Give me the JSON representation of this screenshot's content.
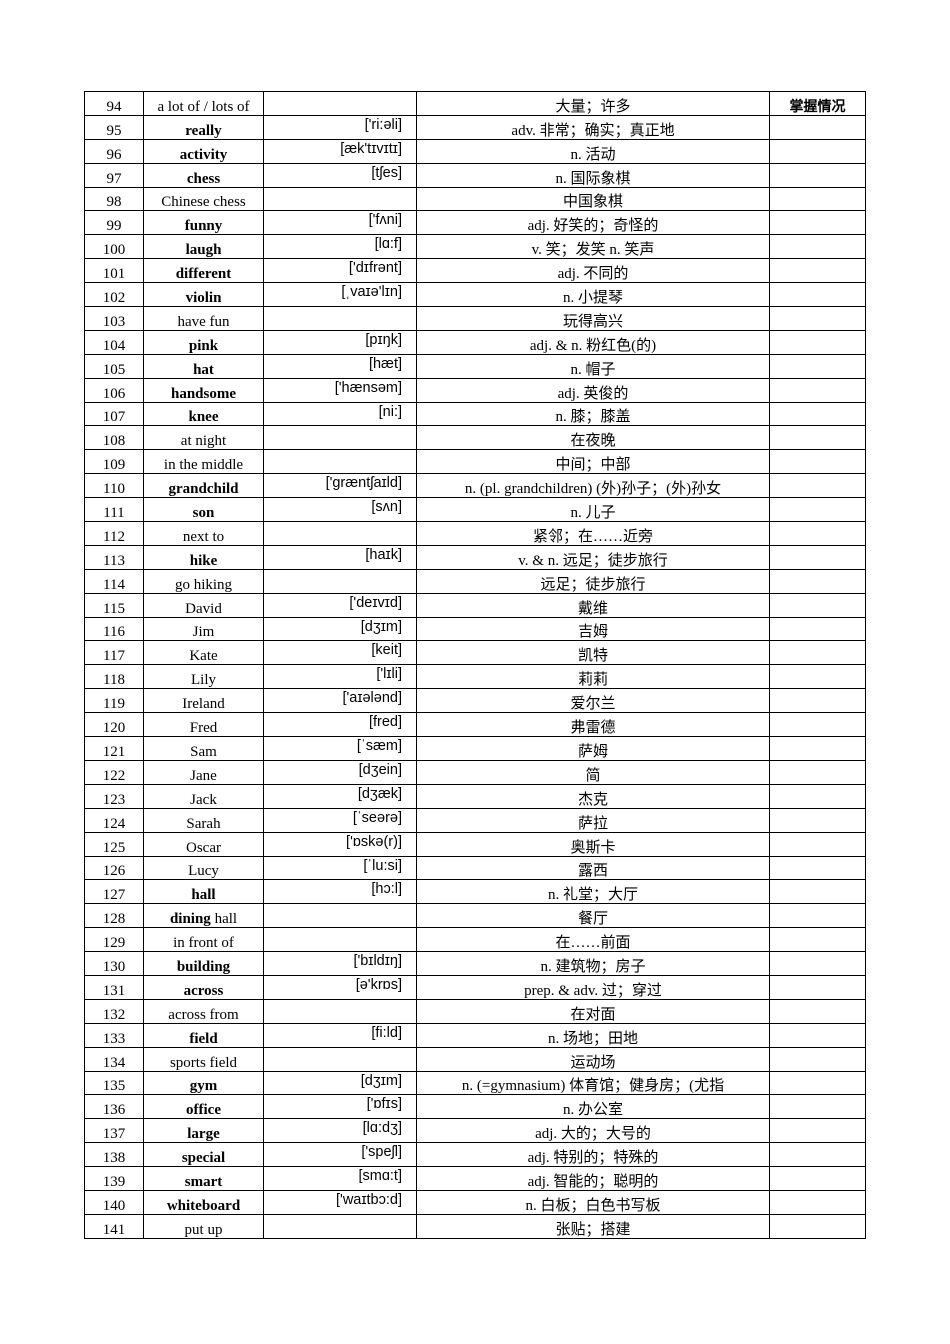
{
  "header_status": "掌握情况",
  "rows": [
    {
      "num": "94",
      "word": [
        {
          "t": "a lot of / lots of",
          "b": false
        }
      ],
      "phon": "",
      "mean": "大量；许多"
    },
    {
      "num": "95",
      "word": [
        {
          "t": "really",
          "b": true
        }
      ],
      "phon": "['ri:əli]",
      "mean": "adv. 非常；确实；真正地"
    },
    {
      "num": "96",
      "word": [
        {
          "t": "activity",
          "b": true
        }
      ],
      "phon": "[æk'tɪvɪtɪ]",
      "mean": "n. 活动"
    },
    {
      "num": "97",
      "word": [
        {
          "t": "chess",
          "b": true
        }
      ],
      "phon": "[tʃes]",
      "mean": "n. 国际象棋"
    },
    {
      "num": "98",
      "word": [
        {
          "t": "Chinese chess",
          "b": false
        }
      ],
      "phon": "",
      "mean": "中国象棋"
    },
    {
      "num": "99",
      "word": [
        {
          "t": "funny",
          "b": true
        }
      ],
      "phon": "['fʌni]",
      "mean": "adj. 好笑的；奇怪的"
    },
    {
      "num": "100",
      "word": [
        {
          "t": "laugh",
          "b": true
        }
      ],
      "phon": "[lɑ:f]",
      "mean": "v. 笑；发笑 n. 笑声"
    },
    {
      "num": "101",
      "word": [
        {
          "t": "different",
          "b": true
        }
      ],
      "phon": "['dɪfrənt]",
      "mean": "adj. 不同的"
    },
    {
      "num": "102",
      "word": [
        {
          "t": "violin",
          "b": true
        }
      ],
      "phon": "[ˌvaɪə'lɪn]",
      "mean": "n. 小提琴"
    },
    {
      "num": "103",
      "word": [
        {
          "t": "have fun",
          "b": false
        }
      ],
      "phon": "",
      "mean": "玩得高兴"
    },
    {
      "num": "104",
      "word": [
        {
          "t": "pink",
          "b": true
        }
      ],
      "phon": "[pɪŋk]",
      "mean": "adj. & n. 粉红色(的)"
    },
    {
      "num": "105",
      "word": [
        {
          "t": "hat",
          "b": true
        }
      ],
      "phon": "[hæt]",
      "mean": "n. 帽子"
    },
    {
      "num": "106",
      "word": [
        {
          "t": "handsome",
          "b": true
        }
      ],
      "phon": "['hænsəm]",
      "mean": "adj. 英俊的"
    },
    {
      "num": "107",
      "word": [
        {
          "t": "knee",
          "b": true
        }
      ],
      "phon": "[ni:]",
      "mean": "n. 膝；膝盖"
    },
    {
      "num": "108",
      "word": [
        {
          "t": "at night",
          "b": false
        }
      ],
      "phon": "",
      "mean": "在夜晚"
    },
    {
      "num": "109",
      "word": [
        {
          "t": "in the middle",
          "b": false
        }
      ],
      "phon": "",
      "mean": "中间；中部"
    },
    {
      "num": "110",
      "word": [
        {
          "t": "grandchild",
          "b": true
        }
      ],
      "phon": "['græntʃaɪld]",
      "mean": "n. (pl. grandchildren) (外)孙子；(外)孙女"
    },
    {
      "num": "111",
      "word": [
        {
          "t": "son",
          "b": true
        }
      ],
      "phon": "[sʌn]",
      "mean": "n. 儿子"
    },
    {
      "num": "112",
      "word": [
        {
          "t": "next to",
          "b": false
        }
      ],
      "phon": "",
      "mean": "紧邻；在……近旁"
    },
    {
      "num": "113",
      "word": [
        {
          "t": "hike",
          "b": true
        }
      ],
      "phon": "[haɪk]",
      "mean": "v. & n. 远足；徒步旅行"
    },
    {
      "num": "114",
      "word": [
        {
          "t": "go hiking",
          "b": false
        }
      ],
      "phon": "",
      "mean": "远足；徒步旅行"
    },
    {
      "num": "115",
      "word": [
        {
          "t": "David",
          "b": false
        }
      ],
      "phon": "['deɪvɪd]",
      "mean": "戴维"
    },
    {
      "num": "116",
      "word": [
        {
          "t": "Jim",
          "b": false
        }
      ],
      "phon": "[dʒɪm]",
      "mean": "吉姆"
    },
    {
      "num": "117",
      "word": [
        {
          "t": "Kate",
          "b": false
        }
      ],
      "phon": "[keit]",
      "mean": "凯特"
    },
    {
      "num": "118",
      "word": [
        {
          "t": "Lily",
          "b": false
        }
      ],
      "phon": "['lɪli]",
      "mean": "莉莉"
    },
    {
      "num": "119",
      "word": [
        {
          "t": "Ireland",
          "b": false
        }
      ],
      "phon": "['aɪələnd]",
      "mean": "爱尔兰"
    },
    {
      "num": "120",
      "word": [
        {
          "t": "Fred",
          "b": false
        }
      ],
      "phon": "[fred]",
      "mean": "弗雷德"
    },
    {
      "num": "121",
      "word": [
        {
          "t": "Sam",
          "b": false
        }
      ],
      "phon": "[ˈsæm]",
      "mean": "萨姆"
    },
    {
      "num": "122",
      "word": [
        {
          "t": "Jane",
          "b": false
        }
      ],
      "phon": "[dʒein]",
      "mean": "简"
    },
    {
      "num": "123",
      "word": [
        {
          "t": "Jack",
          "b": false
        }
      ],
      "phon": "[dʒæk]",
      "mean": "杰克"
    },
    {
      "num": "124",
      "word": [
        {
          "t": "Sarah",
          "b": false
        }
      ],
      "phon": "[ˈseərə]",
      "mean": "萨拉"
    },
    {
      "num": "125",
      "word": [
        {
          "t": "Oscar",
          "b": false
        }
      ],
      "phon": "['ɒskə(r)]",
      "mean": "奥斯卡"
    },
    {
      "num": "126",
      "word": [
        {
          "t": "Lucy",
          "b": false
        }
      ],
      "phon": "[ˈlu:si]",
      "mean": "露西"
    },
    {
      "num": "127",
      "word": [
        {
          "t": "hall",
          "b": true
        }
      ],
      "phon": "[hɔ:l]",
      "mean": "n. 礼堂；大厅"
    },
    {
      "num": "128",
      "word": [
        {
          "t": "dining",
          "b": true
        },
        {
          "t": " hall",
          "b": false
        }
      ],
      "phon": "",
      "mean": "餐厅"
    },
    {
      "num": "129",
      "word": [
        {
          "t": "in front of",
          "b": false
        }
      ],
      "phon": "",
      "mean": "在……前面"
    },
    {
      "num": "130",
      "word": [
        {
          "t": "building",
          "b": true
        }
      ],
      "phon": "['bɪldɪŋ]",
      "mean": "n. 建筑物；房子"
    },
    {
      "num": "131",
      "word": [
        {
          "t": "across",
          "b": true
        }
      ],
      "phon": "[ə'krɒs]",
      "mean": "prep. & adv. 过；穿过"
    },
    {
      "num": "132",
      "word": [
        {
          "t": "across from",
          "b": false
        }
      ],
      "phon": "",
      "mean": "在对面"
    },
    {
      "num": "133",
      "word": [
        {
          "t": "field",
          "b": true
        }
      ],
      "phon": "[fi:ld]",
      "mean": "n. 场地；田地"
    },
    {
      "num": "134",
      "word": [
        {
          "t": "sports field",
          "b": false
        }
      ],
      "phon": "",
      "mean": "运动场"
    },
    {
      "num": "135",
      "word": [
        {
          "t": "gym",
          "b": true
        }
      ],
      "phon": "[dʒɪm]",
      "mean": "n. (=gymnasium) 体育馆；健身房；(尤指"
    },
    {
      "num": "136",
      "word": [
        {
          "t": "office",
          "b": true
        }
      ],
      "phon": "['ɒfɪs]",
      "mean": "n. 办公室"
    },
    {
      "num": "137",
      "word": [
        {
          "t": "large",
          "b": true
        }
      ],
      "phon": "[lɑ:dʒ]",
      "mean": "adj. 大的；大号的"
    },
    {
      "num": "138",
      "word": [
        {
          "t": "special",
          "b": true
        }
      ],
      "phon": "['speʃl]",
      "mean": "adj. 特别的；特殊的"
    },
    {
      "num": "139",
      "word": [
        {
          "t": "smart",
          "b": true
        }
      ],
      "phon": "[smɑ:t]",
      "mean": "adj. 智能的；聪明的"
    },
    {
      "num": "140",
      "word": [
        {
          "t": "whiteboard",
          "b": true
        }
      ],
      "phon": "['waɪtbɔ:d]",
      "mean": "n. 白板；白色书写板"
    },
    {
      "num": "141",
      "word": [
        {
          "t": "put up",
          "b": false
        }
      ],
      "phon": "",
      "mean": "张贴；搭建"
    }
  ]
}
